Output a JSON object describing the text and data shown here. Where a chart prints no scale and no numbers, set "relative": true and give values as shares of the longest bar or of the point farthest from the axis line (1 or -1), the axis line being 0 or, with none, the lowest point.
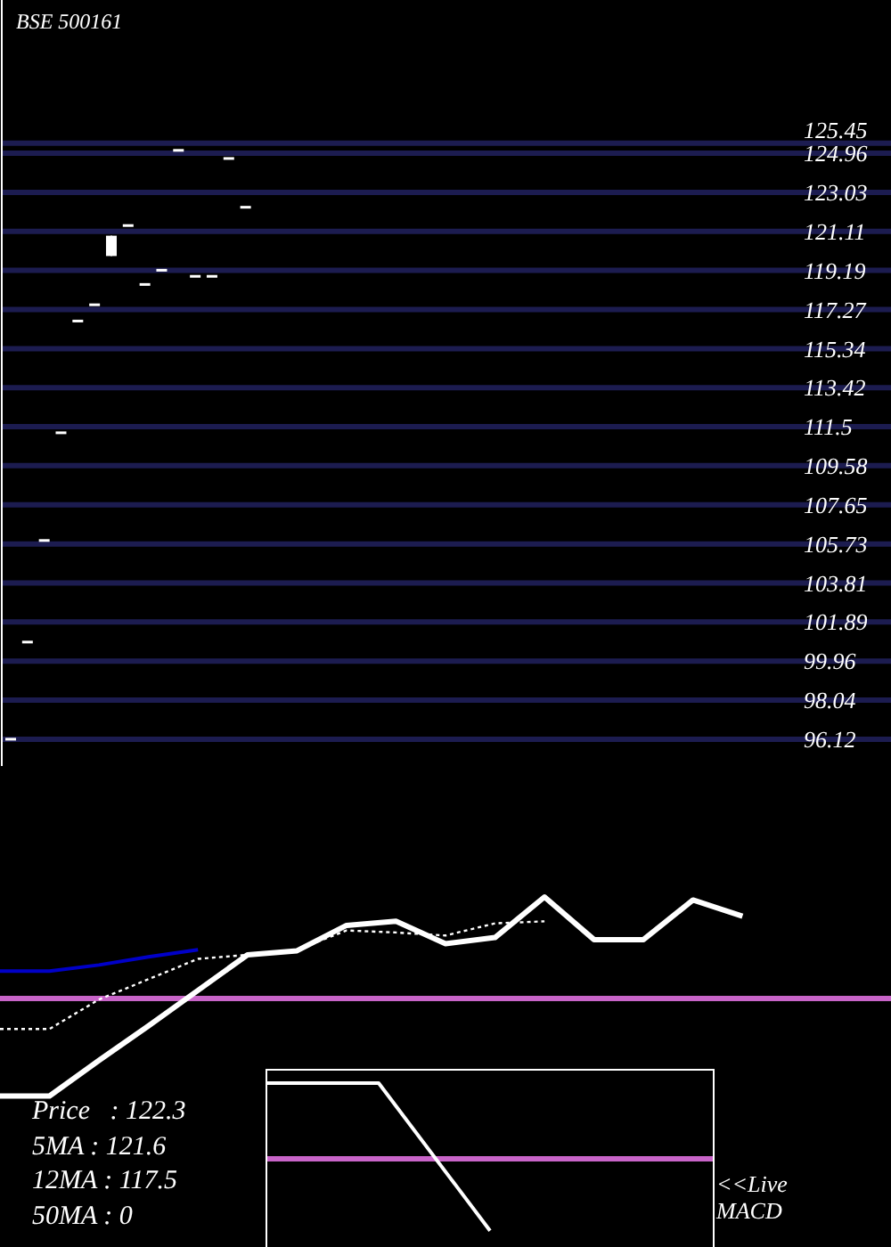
{
  "chart_data": [
    {
      "type": "candlestick",
      "title": "BSE 500161",
      "color": "#ffffff",
      "categories": [
        null,
        null,
        null,
        null,
        null,
        null,
        null,
        null,
        null,
        null,
        null,
        null,
        null,
        null,
        null,
        null,
        null,
        null,
        null,
        null,
        null,
        null,
        null,
        null,
        null,
        null,
        null,
        null,
        null,
        null,
        null,
        null,
        null,
        null,
        null,
        null,
        null,
        null,
        null,
        null,
        null,
        null,
        null,
        null,
        null,
        null,
        null,
        null,
        null,
        null,
        null,
        null,
        null
      ],
      "ohlc": [
        [
          96.12,
          96.12,
          96.12,
          96.12
        ],
        [
          100.9,
          100.9,
          100.9,
          100.9
        ],
        [
          105.9,
          105.9,
          105.9,
          105.9
        ],
        [
          111.2,
          111.2,
          111.2,
          111.2
        ],
        [
          116.7,
          116.7,
          116.7,
          116.7
        ],
        [
          117.5,
          117.5,
          117.5,
          117.5
        ],
        [
          119.9,
          120.9,
          119.9,
          120.9
        ],
        [
          121.4,
          121.4,
          121.4,
          121.4
        ],
        [
          118.5,
          118.5,
          118.5,
          118.5
        ],
        [
          119.2,
          119.2,
          119.2,
          119.2
        ],
        [
          125.1,
          125.1,
          125.1,
          125.1
        ],
        [
          118.9,
          118.9,
          118.9,
          118.9
        ],
        [
          118.9,
          118.9,
          118.9,
          118.9
        ],
        [
          124.7,
          124.7,
          124.7,
          124.7
        ],
        [
          122.3,
          122.3,
          122.3,
          122.3
        ],
        null,
        null,
        null,
        null,
        null,
        null,
        null,
        null,
        null,
        null,
        null,
        null,
        null,
        null,
        null,
        null,
        null,
        null,
        null,
        null,
        null,
        null,
        null,
        null,
        null,
        null,
        null,
        null,
        null,
        null,
        null,
        null,
        null,
        null,
        null,
        null,
        null,
        null
      ],
      "ylim": [
        94.8,
        132.5
      ],
      "yticks": [
        96.12,
        98.04,
        99.96,
        101.89,
        103.81,
        105.73,
        107.65,
        109.58,
        111.5,
        113.42,
        115.34,
        117.27,
        119.19,
        121.11,
        123.03,
        124.96
      ],
      "ref_lines": [
        {
          "axis": "y",
          "value": 125.45,
          "label": "125.45",
          "color": "#1c1c50"
        }
      ],
      "grid": "y",
      "tick_labels": "y"
    },
    {
      "type": "line",
      "relative": true,
      "tick_labels": false,
      "categories": [
        null,
        null,
        null,
        null,
        null,
        null,
        null,
        null,
        null,
        null,
        null,
        null,
        null,
        null,
        null,
        null,
        null,
        null,
        null
      ],
      "series": [
        {
          "color": "#ffffff",
          "line_style": "solid",
          "values": [
            -0.96,
            -0.96,
            -0.61,
            -0.27,
            0.08,
            0.43,
            0.47,
            0.72,
            0.76,
            0.54,
            0.6,
            1,
            0.58,
            0.58,
            0.97,
            0.81,
            null,
            null,
            null
          ]
        },
        {
          "color": "#ffffff",
          "line_style": "dotted",
          "values": [
            -0.3,
            -0.3,
            -0.01,
            0.19,
            0.39,
            0.43,
            0.48,
            0.67,
            0.65,
            0.62,
            0.74,
            0.76,
            null,
            null,
            null,
            null,
            null,
            null,
            null
          ]
        },
        {
          "color": "#0000c8",
          "line_style": "solid",
          "values": [
            0.27,
            0.27,
            0.33,
            0.41,
            0.48,
            null,
            null,
            null,
            null,
            null,
            null,
            null,
            null,
            null,
            null,
            null,
            null,
            null,
            null
          ]
        }
      ],
      "ref_lines": [
        {
          "axis": "y",
          "value": 0,
          "color": "#c864c8"
        }
      ]
    },
    {
      "type": "line",
      "title": "<<Live MACD",
      "relative": true,
      "tick_labels": false,
      "categories": [
        null,
        null,
        null,
        null,
        null
      ],
      "series": [
        {
          "color": "#ffffff",
          "line_style": "solid",
          "values": [
            1,
            1,
            -0.95,
            null,
            null
          ]
        }
      ],
      "ref_lines": [
        {
          "axis": "y",
          "value": 0,
          "color": "#c864c8"
        }
      ]
    },
    {
      "type": "other",
      "annotations": [
        "Price   : 122.3",
        "5MA : 121.6",
        "12MA : 117.5",
        "50MA : 0"
      ]
    }
  ]
}
